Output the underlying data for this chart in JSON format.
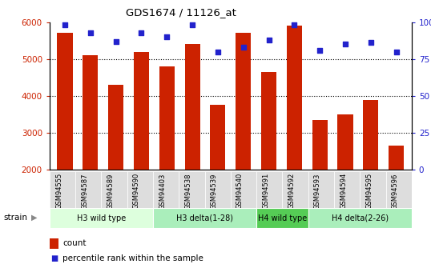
{
  "title": "GDS1674 / 11126_at",
  "samples": [
    "GSM94555",
    "GSM94587",
    "GSM94589",
    "GSM94590",
    "GSM94403",
    "GSM94538",
    "GSM94539",
    "GSM94540",
    "GSM94591",
    "GSM94592",
    "GSM94593",
    "GSM94594",
    "GSM94595",
    "GSM94596"
  ],
  "counts": [
    5700,
    5100,
    4300,
    5200,
    4800,
    5400,
    3750,
    5700,
    4650,
    5900,
    3350,
    3500,
    3900,
    2650
  ],
  "percentiles": [
    98,
    93,
    87,
    93,
    90,
    98,
    80,
    83,
    88,
    98,
    81,
    85,
    86,
    80
  ],
  "bar_color": "#cc2200",
  "dot_color": "#2222cc",
  "ylim_left": [
    2000,
    6000
  ],
  "ylim_right": [
    0,
    100
  ],
  "yticks_left": [
    2000,
    3000,
    4000,
    5000,
    6000
  ],
  "yticks_right": [
    0,
    25,
    50,
    75,
    100
  ],
  "ytick_labels_right": [
    "0",
    "25",
    "50",
    "75",
    "100%"
  ],
  "groups": [
    {
      "label": "H3 wild type",
      "start": 0,
      "end": 4,
      "color": "#ddffdd"
    },
    {
      "label": "H3 delta(1-28)",
      "start": 4,
      "end": 8,
      "color": "#aaeebb"
    },
    {
      "label": "H4 wild type",
      "start": 8,
      "end": 10,
      "color": "#55cc55"
    },
    {
      "label": "H4 delta(2-26)",
      "start": 10,
      "end": 14,
      "color": "#aaeebb"
    }
  ],
  "strain_label": "strain",
  "legend_count_label": "count",
  "legend_percentile_label": "percentile rank within the sample",
  "background_color": "#ffffff",
  "left_tick_color": "#cc2200",
  "right_tick_color": "#2222cc",
  "xlabel_bg": "#dddddd"
}
